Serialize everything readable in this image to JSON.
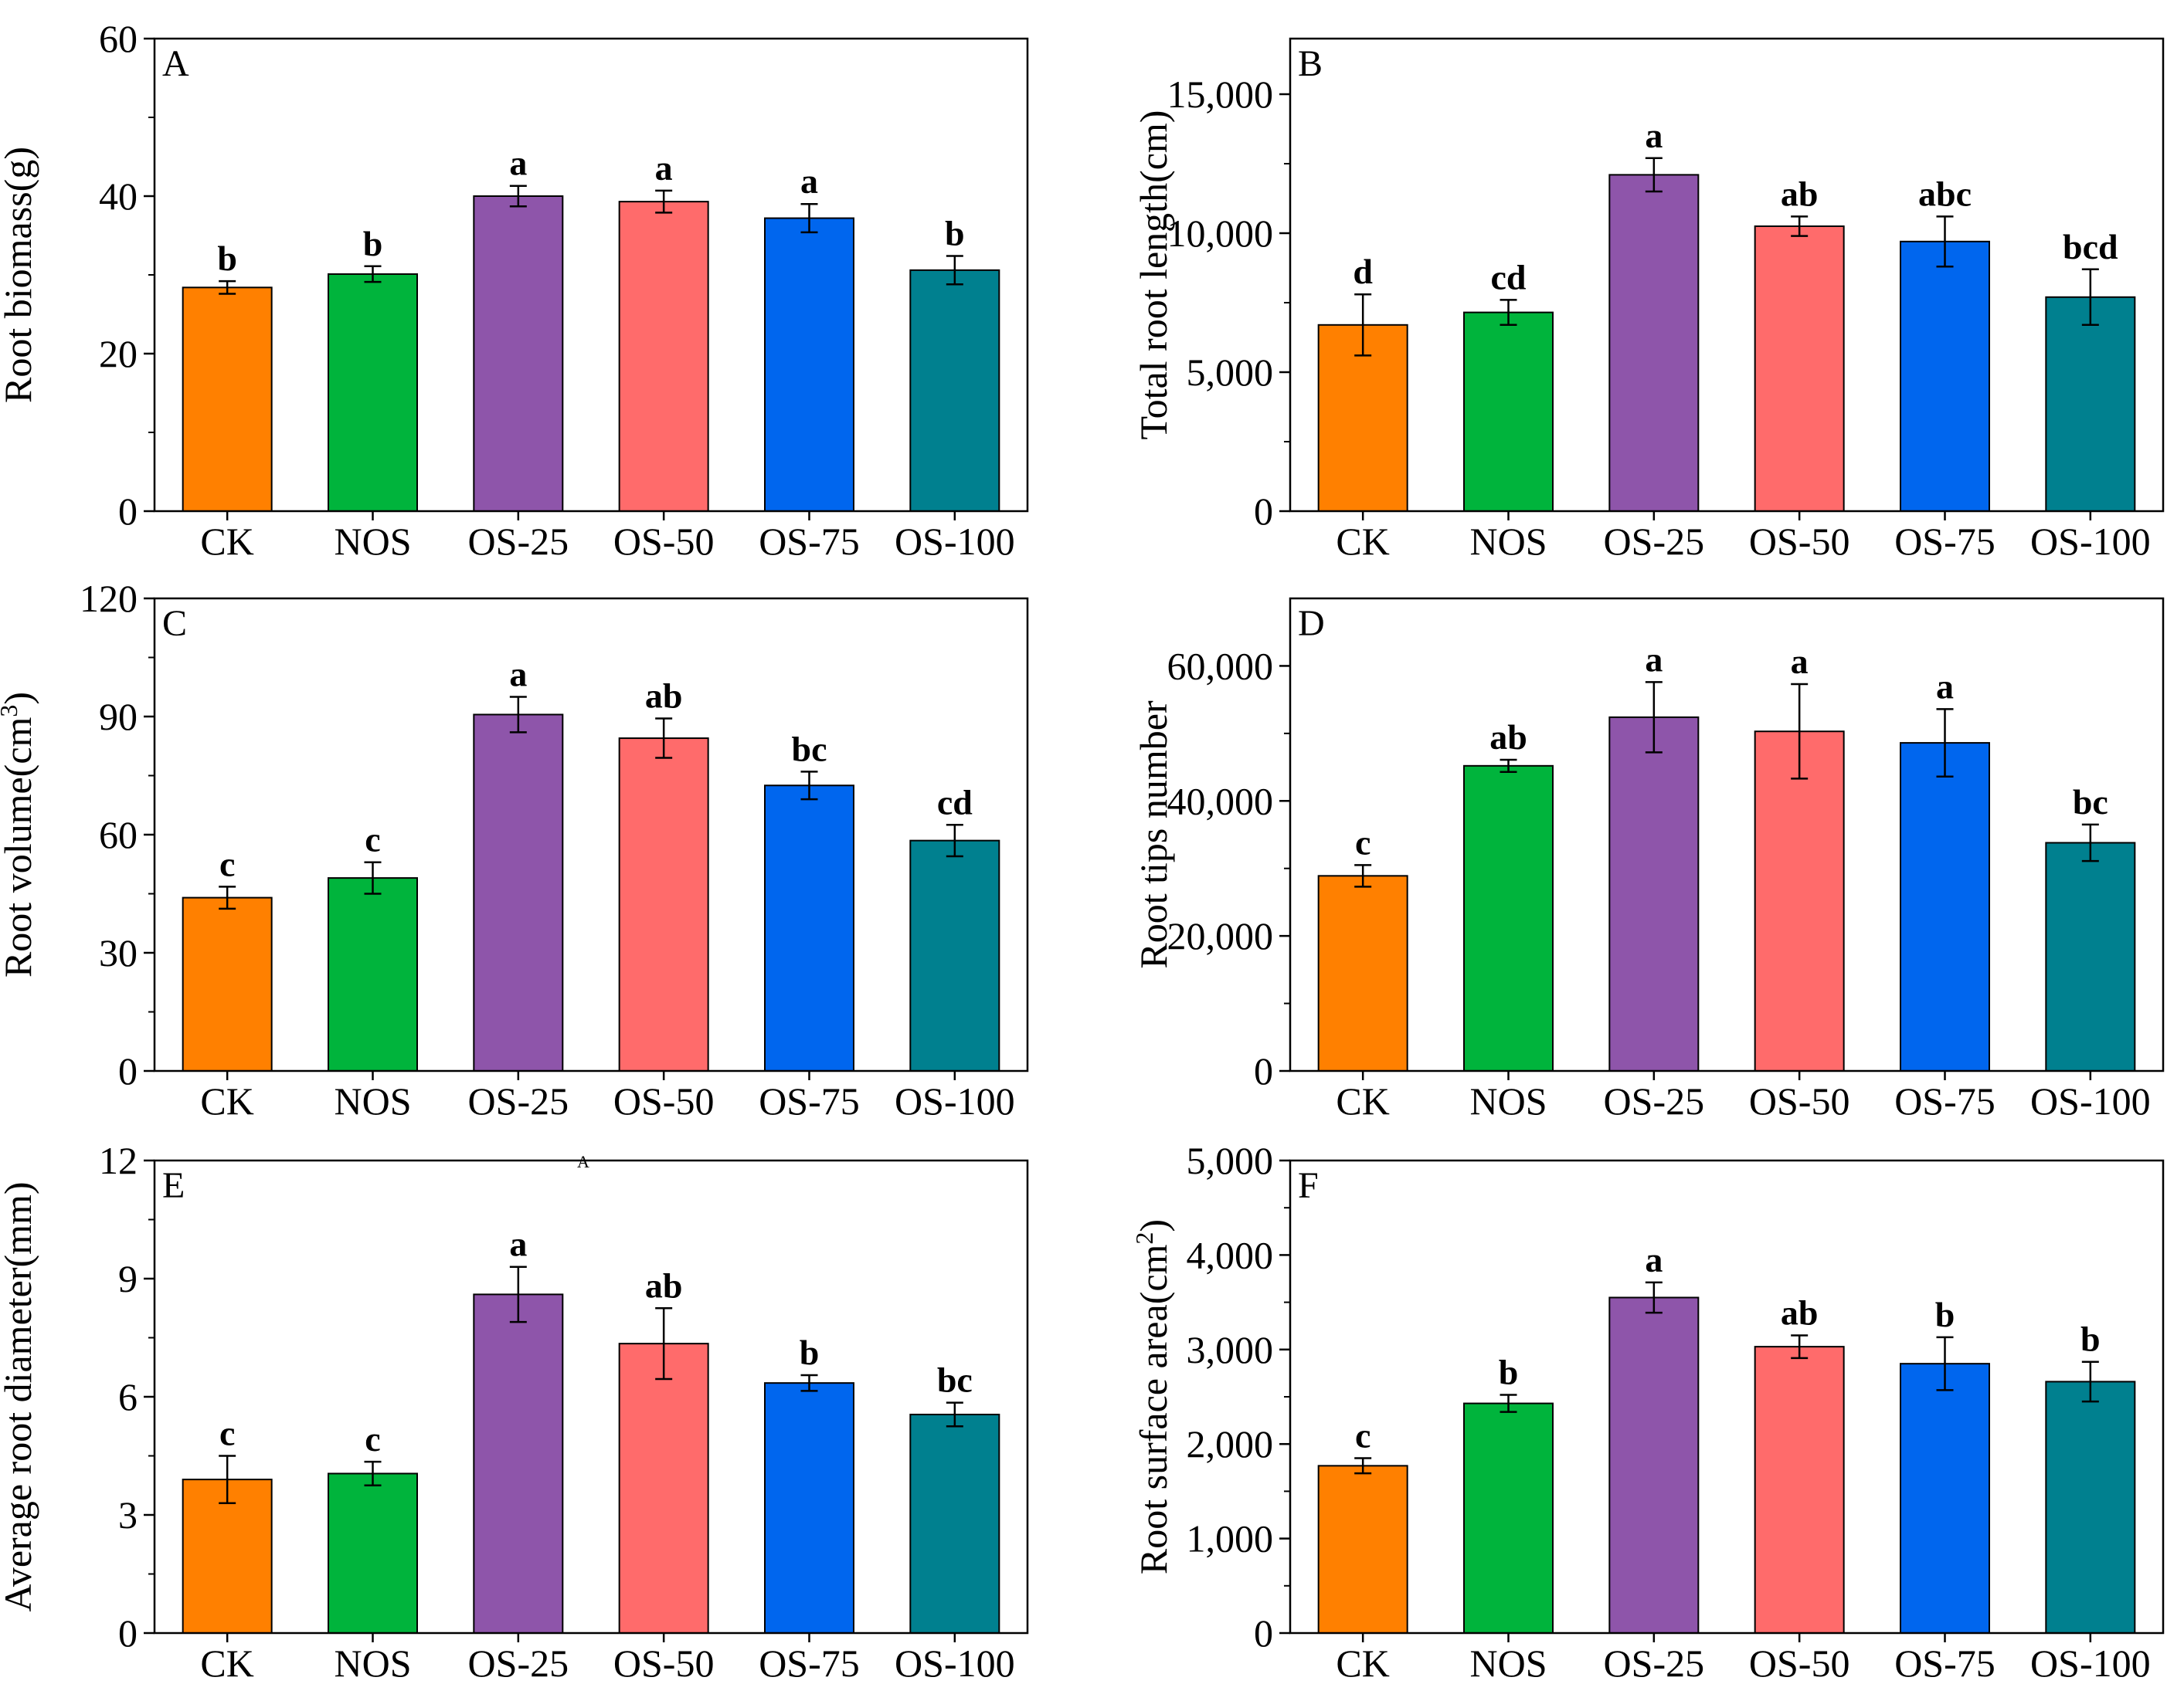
{
  "colors": [
    "#FF8000",
    "#00B43C",
    "#8E55AA",
    "#FF6B6B",
    "#0066EE",
    "#00808F"
  ],
  "stray_mark": "A",
  "chart_data": [
    {
      "type": "bar",
      "panel": "A",
      "ylabel": "Root biomass(g)",
      "ylabel_unit_sup": "",
      "ylabel_tail": "",
      "categories": [
        "CK",
        "NOS",
        "OS-25",
        "OS-50",
        "OS-75",
        "OS-100"
      ],
      "values": [
        28.4,
        30.1,
        40.0,
        39.3,
        37.2,
        30.6
      ],
      "errors": [
        0.8,
        1.0,
        1.3,
        1.4,
        1.8,
        1.8
      ],
      "letters": [
        "b",
        "b",
        "a",
        "a",
        "a",
        "b"
      ],
      "ylim": [
        0,
        60
      ],
      "yticks": [
        0,
        20,
        40,
        60
      ],
      "ytick_labels": [
        "0",
        "20",
        "40",
        "60"
      ],
      "minor_ticks": true
    },
    {
      "type": "bar",
      "panel": "B",
      "ylabel": "Total root length(cm)",
      "ylabel_unit_sup": "",
      "ylabel_tail": "",
      "categories": [
        "CK",
        "NOS",
        "OS-25",
        "OS-50",
        "OS-75",
        "OS-100"
      ],
      "values": [
        6700,
        7150,
        12100,
        10250,
        9700,
        7700
      ],
      "errors": [
        1100,
        450,
        600,
        350,
        900,
        1000
      ],
      "letters": [
        "d",
        "cd",
        "a",
        "ab",
        "abc",
        "bcd"
      ],
      "ylim": [
        0,
        17000
      ],
      "yticks": [
        0,
        5000,
        10000,
        15000
      ],
      "ytick_labels": [
        "0",
        "5,000",
        "10,000",
        "15,000"
      ],
      "minor_ticks": true
    },
    {
      "type": "bar",
      "panel": "C",
      "ylabel": "Root volume(cm",
      "ylabel_unit_sup": "3",
      "ylabel_tail": ")",
      "categories": [
        "CK",
        "NOS",
        "OS-25",
        "OS-50",
        "OS-75",
        "OS-100"
      ],
      "values": [
        44,
        49,
        90.5,
        84.5,
        72.5,
        58.5
      ],
      "errors": [
        2.8,
        4.0,
        4.5,
        5.0,
        3.5,
        4.0
      ],
      "letters": [
        "c",
        "c",
        "a",
        "ab",
        "bc",
        "cd"
      ],
      "ylim": [
        0,
        120
      ],
      "yticks": [
        0,
        30,
        60,
        90,
        120
      ],
      "ytick_labels": [
        "0",
        "30",
        "60",
        "90",
        "120"
      ],
      "minor_ticks": true
    },
    {
      "type": "bar",
      "panel": "D",
      "ylabel": "Root tips number",
      "ylabel_unit_sup": "",
      "ylabel_tail": "",
      "categories": [
        "CK",
        "NOS",
        "OS-25",
        "OS-50",
        "OS-75",
        "OS-100"
      ],
      "values": [
        28900,
        45200,
        52400,
        50300,
        48600,
        33800
      ],
      "errors": [
        1600,
        900,
        5200,
        7000,
        5000,
        2700
      ],
      "letters": [
        "c",
        "ab",
        "a",
        "a",
        "a",
        "bc"
      ],
      "ylim": [
        0,
        70000
      ],
      "yticks": [
        0,
        20000,
        40000,
        60000
      ],
      "ytick_labels": [
        "0",
        "20,000",
        "40,000",
        "60,000"
      ],
      "minor_ticks": true
    },
    {
      "type": "bar",
      "panel": "E",
      "ylabel": "Average root diameter(mm)",
      "ylabel_unit_sup": "",
      "ylabel_tail": "",
      "categories": [
        "CK",
        "NOS",
        "OS-25",
        "OS-50",
        "OS-75",
        "OS-100"
      ],
      "values": [
        3.9,
        4.05,
        8.6,
        7.35,
        6.35,
        5.55
      ],
      "errors": [
        0.6,
        0.3,
        0.7,
        0.9,
        0.2,
        0.3
      ],
      "letters": [
        "c",
        "c",
        "a",
        "ab",
        "b",
        "bc"
      ],
      "ylim": [
        0,
        12
      ],
      "yticks": [
        0,
        3,
        6,
        9,
        12
      ],
      "ytick_labels": [
        "0",
        "3",
        "6",
        "9",
        "12"
      ],
      "minor_ticks": true
    },
    {
      "type": "bar",
      "panel": "F",
      "ylabel": "Root surface area(cm",
      "ylabel_unit_sup": "2",
      "ylabel_tail": ")",
      "categories": [
        "CK",
        "NOS",
        "OS-25",
        "OS-50",
        "OS-75",
        "OS-100"
      ],
      "values": [
        1770,
        2430,
        3550,
        3030,
        2850,
        2660
      ],
      "errors": [
        80,
        90,
        160,
        120,
        280,
        210
      ],
      "letters": [
        "c",
        "b",
        "a",
        "ab",
        "b",
        "b"
      ],
      "ylim": [
        0,
        5000
      ],
      "yticks": [
        0,
        1000,
        2000,
        3000,
        4000,
        5000
      ],
      "ytick_labels": [
        "0",
        "1,000",
        "2,000",
        "3,000",
        "4,000",
        "5,000"
      ],
      "minor_ticks": true
    }
  ]
}
